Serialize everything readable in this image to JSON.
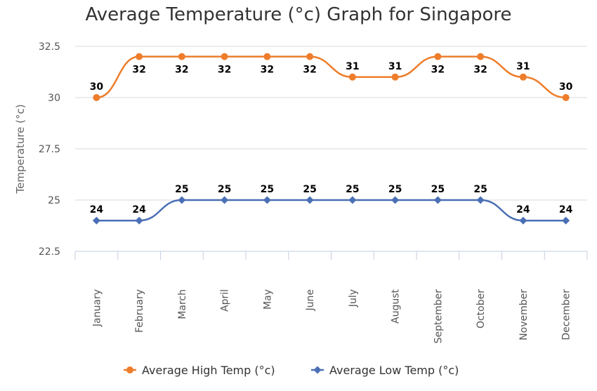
{
  "chart_data": {
    "type": "line",
    "title": "Average Temperature (°c) Graph for Singapore",
    "xlabel": "",
    "ylabel": "Temperature (°c)",
    "ylim": [
      22.5,
      32.5
    ],
    "yticks": [
      "22.5",
      "25",
      "27.5",
      "30",
      "32.5"
    ],
    "grid": true,
    "legend_position": "bottom",
    "categories": [
      "January",
      "February",
      "March",
      "April",
      "May",
      "June",
      "July",
      "August",
      "September",
      "October",
      "November",
      "December"
    ],
    "series": [
      {
        "name": "Average High Temp (°c)",
        "color": "#ee7d2b",
        "marker": "circle",
        "values": [
          30,
          32,
          32,
          32,
          32,
          32,
          31,
          31,
          32,
          32,
          31,
          30
        ]
      },
      {
        "name": "Average Low Temp (°c)",
        "color": "#4a6fb5",
        "marker": "diamond",
        "values": [
          24,
          24,
          25,
          25,
          25,
          25,
          25,
          25,
          25,
          25,
          24,
          24
        ]
      }
    ]
  }
}
